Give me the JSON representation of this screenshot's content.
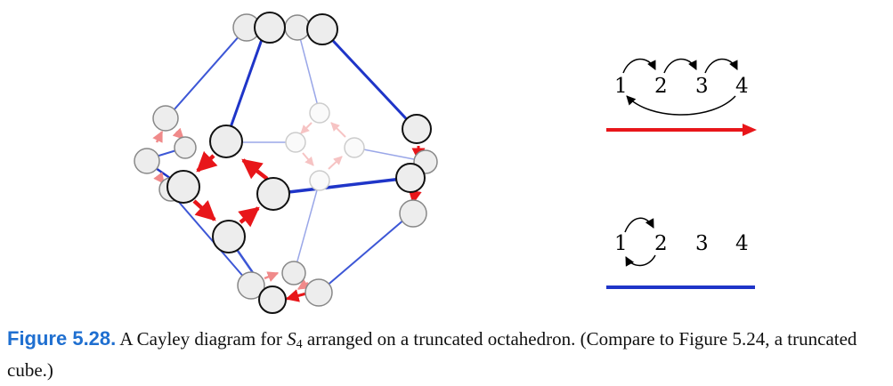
{
  "colors": {
    "red_generator": "#e8161a",
    "blue_generator": "#1f35c8",
    "caption_label": "#1f6fd0"
  },
  "legend": {
    "red": {
      "numbers": [
        "1",
        "2",
        "3",
        "4"
      ]
    },
    "blue": {
      "numbers": [
        "1",
        "2",
        "3",
        "4"
      ]
    }
  },
  "caption": {
    "label": "Figure 5.28.",
    "text_before": "A Cayley diagram for ",
    "symbol": "S",
    "subscript": "4",
    "text_after": " arranged on a truncated octahedron. (Compare to Figure 5.24, a truncated cube.)"
  }
}
